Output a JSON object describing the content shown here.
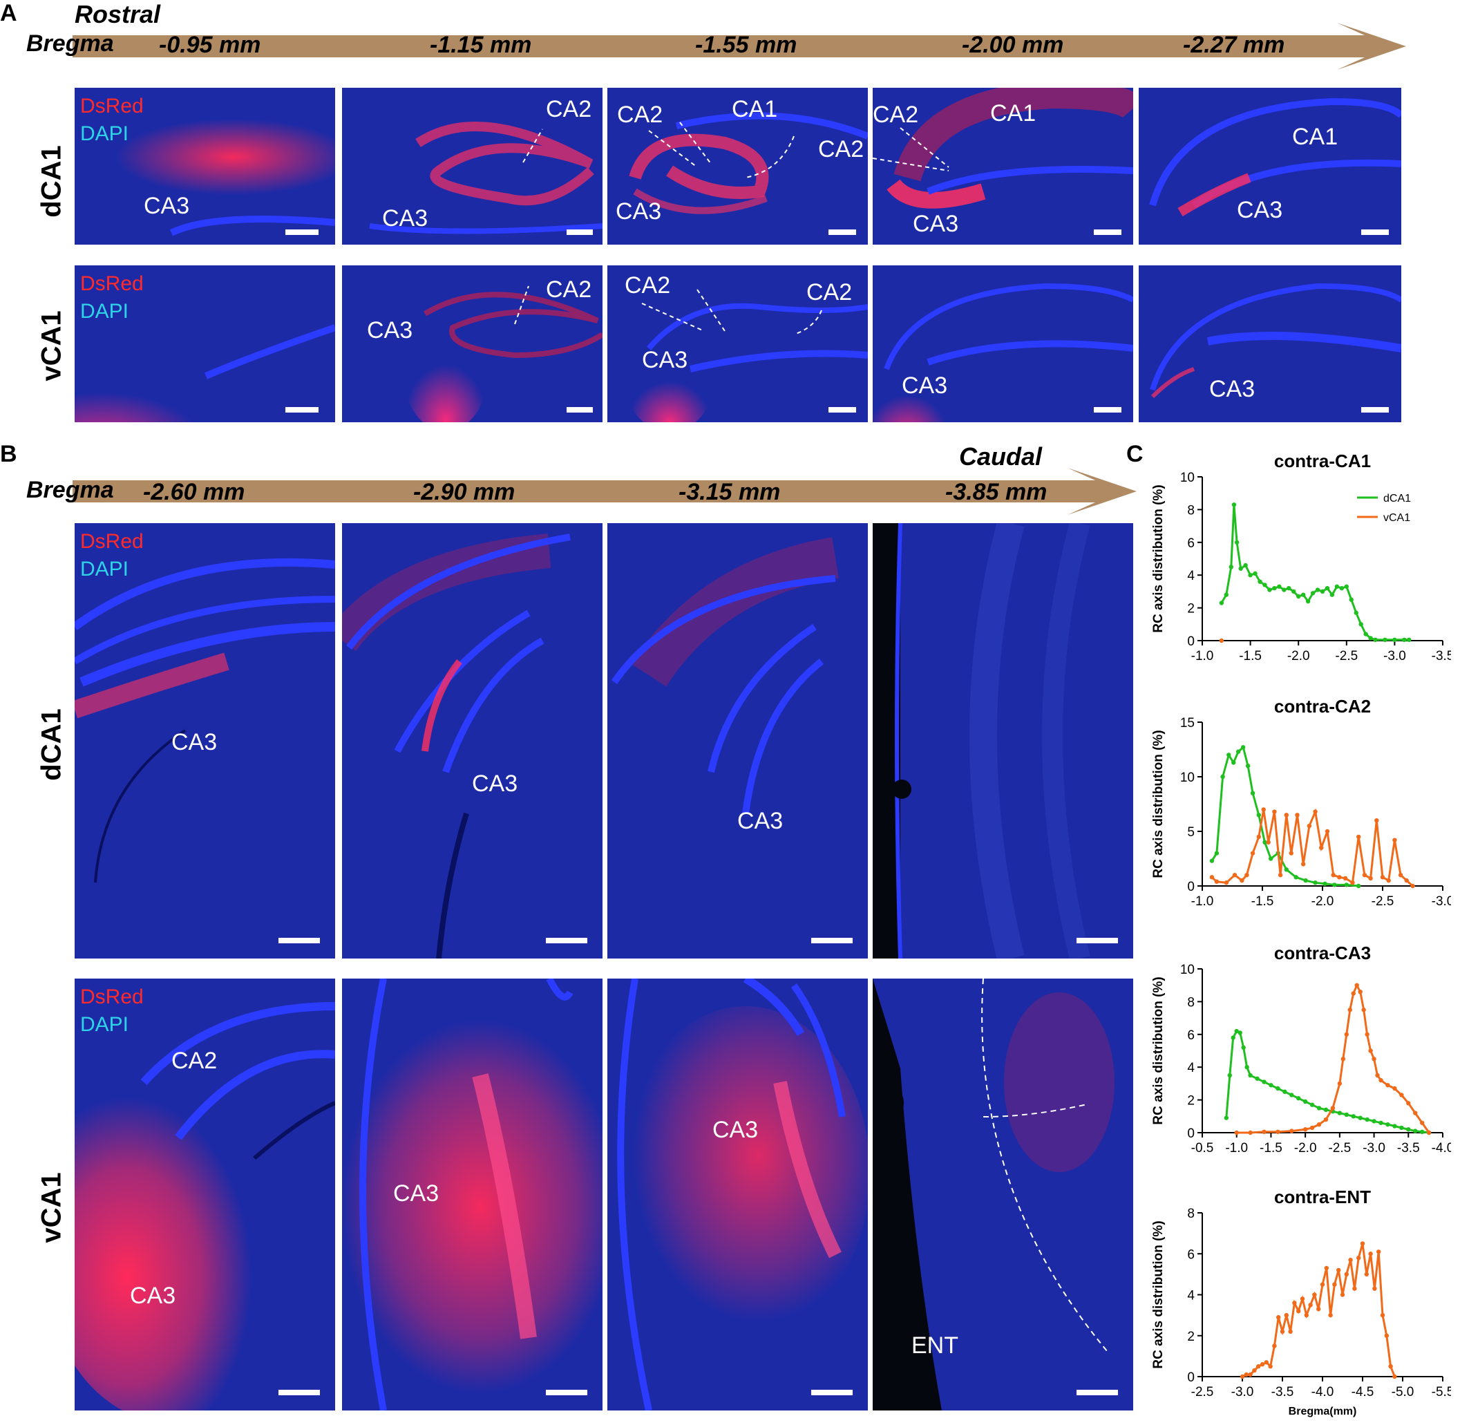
{
  "panel_labels": {
    "a": "A",
    "b": "B",
    "c": "C"
  },
  "direction": {
    "rostral": "Rostral",
    "caudal": "Caudal",
    "bregma": "Bregma"
  },
  "row_labels": {
    "dca1": "dCA1",
    "vca1": "vCA1"
  },
  "stain_legend": {
    "dsred": "DsRed",
    "dapi": "DAPI"
  },
  "bregma_a": [
    "-0.95 mm",
    "-1.15 mm",
    "-1.55 mm",
    "-2.00 mm",
    "-2.27 mm"
  ],
  "bregma_b": [
    "-2.60 mm",
    "-2.90 mm",
    "-3.15 mm",
    "-3.85 mm"
  ],
  "region_labels": {
    "ca1": "CA1",
    "ca2": "CA2",
    "ca3": "CA3",
    "ent": "ENT"
  },
  "colors": {
    "arrow": "#b08a62",
    "tissue": "#1d2aa6",
    "dsred": "#ff2a5a",
    "dapi": "#2fd3e8",
    "dca1": "#1fbf1f",
    "vca1": "#f06a1a"
  },
  "chart_data": [
    {
      "type": "line",
      "title": "contra-CA1",
      "ylabel": "RC axis distribution (%)",
      "xlabel": "",
      "xlim": [
        -1.0,
        -3.5
      ],
      "xticks": [
        -1.0,
        -1.5,
        -2.0,
        -2.5,
        -3.0,
        -3.5
      ],
      "ylim": [
        0,
        10
      ],
      "yticks": [
        0,
        2,
        4,
        6,
        8,
        10
      ],
      "legend": "top-right",
      "series": [
        {
          "name": "dCA1",
          "x": [
            -1.2,
            -1.25,
            -1.3,
            -1.33,
            -1.36,
            -1.4,
            -1.45,
            -1.5,
            -1.55,
            -1.6,
            -1.65,
            -1.7,
            -1.75,
            -1.8,
            -1.85,
            -1.9,
            -1.95,
            -2.0,
            -2.05,
            -2.1,
            -2.15,
            -2.2,
            -2.25,
            -2.3,
            -2.35,
            -2.4,
            -2.45,
            -2.5,
            -2.55,
            -2.6,
            -2.65,
            -2.7,
            -2.75,
            -2.8,
            -2.9,
            -3.0,
            -3.1,
            -3.15
          ],
          "y": [
            2.3,
            2.8,
            4.5,
            8.3,
            6.0,
            4.4,
            4.6,
            4.0,
            4.1,
            3.6,
            3.4,
            3.1,
            3.2,
            3.3,
            3.1,
            3.2,
            3.0,
            2.7,
            2.8,
            2.4,
            2.9,
            3.1,
            3.0,
            3.2,
            2.8,
            3.3,
            3.2,
            3.3,
            2.5,
            1.7,
            1.0,
            0.4,
            0.15,
            0.05,
            0.05,
            0.05,
            0.05,
            0.05
          ]
        },
        {
          "name": "vCA1",
          "x": [
            -1.2
          ],
          "y": [
            0.0
          ]
        }
      ]
    },
    {
      "type": "line",
      "title": "contra-CA2",
      "ylabel": "RC axis distribution (%)",
      "xlabel": "",
      "xlim": [
        -1.0,
        -3.0
      ],
      "xticks": [
        -1.0,
        -1.5,
        -2.0,
        -2.5,
        -3.0
      ],
      "ylim": [
        0,
        15
      ],
      "yticks": [
        0,
        5,
        10,
        15
      ],
      "legend": "",
      "series": [
        {
          "name": "dCA1",
          "x": [
            -1.08,
            -1.12,
            -1.17,
            -1.22,
            -1.26,
            -1.3,
            -1.34,
            -1.38,
            -1.42,
            -1.47,
            -1.52,
            -1.57,
            -1.63,
            -1.7,
            -1.78,
            -1.86,
            -1.94,
            -2.02,
            -2.1,
            -2.2,
            -2.3
          ],
          "y": [
            2.3,
            3.0,
            10.0,
            12.0,
            11.3,
            12.3,
            12.7,
            11.0,
            8.5,
            6.5,
            4.0,
            2.5,
            3.0,
            1.5,
            0.8,
            0.5,
            0.3,
            0.2,
            0.1,
            0.1,
            0.0
          ]
        },
        {
          "name": "vCA1",
          "x": [
            -1.08,
            -1.12,
            -1.2,
            -1.27,
            -1.33,
            -1.37,
            -1.42,
            -1.47,
            -1.51,
            -1.55,
            -1.6,
            -1.65,
            -1.7,
            -1.74,
            -1.79,
            -1.84,
            -1.89,
            -1.94,
            -1.99,
            -2.04,
            -2.09,
            -2.14,
            -2.19,
            -2.25,
            -2.3,
            -2.35,
            -2.4,
            -2.45,
            -2.5,
            -2.55,
            -2.6,
            -2.65,
            -2.7,
            -2.75
          ],
          "y": [
            0.8,
            0.4,
            0.3,
            1.0,
            0.5,
            1.0,
            3.0,
            4.5,
            7.0,
            4.0,
            6.8,
            1.0,
            6.5,
            3.0,
            6.5,
            2.0,
            5.5,
            6.8,
            3.5,
            5.0,
            1.0,
            0.8,
            0.7,
            0.3,
            4.5,
            1.0,
            0.7,
            6.0,
            0.8,
            0.5,
            4.2,
            1.0,
            0.5,
            0.0
          ]
        }
      ]
    },
    {
      "type": "line",
      "title": "contra-CA3",
      "ylabel": "RC axis distribution (%)",
      "xlabel": "",
      "xlim": [
        -0.5,
        -4.0
      ],
      "xticks": [
        -0.5,
        -1.0,
        -1.5,
        -2.0,
        -2.5,
        -3.0,
        -3.5,
        -4.0
      ],
      "ylim": [
        0,
        10
      ],
      "yticks": [
        0,
        2,
        4,
        6,
        8,
        10
      ],
      "legend": "",
      "series": [
        {
          "name": "dCA1",
          "x": [
            -0.85,
            -0.9,
            -0.95,
            -1.0,
            -1.05,
            -1.1,
            -1.15,
            -1.2,
            -1.3,
            -1.4,
            -1.5,
            -1.6,
            -1.7,
            -1.8,
            -1.9,
            -2.0,
            -2.1,
            -2.2,
            -2.3,
            -2.4,
            -2.5,
            -2.6,
            -2.7,
            -2.8,
            -2.9,
            -3.0,
            -3.1,
            -3.2,
            -3.3,
            -3.4,
            -3.5,
            -3.6,
            -3.7,
            -3.8
          ],
          "y": [
            0.9,
            3.5,
            5.8,
            6.2,
            6.1,
            5.2,
            4.0,
            3.5,
            3.3,
            3.1,
            2.9,
            2.7,
            2.5,
            2.3,
            2.1,
            1.9,
            1.7,
            1.5,
            1.4,
            1.3,
            1.2,
            1.1,
            1.0,
            0.9,
            0.8,
            0.7,
            0.6,
            0.5,
            0.4,
            0.3,
            0.2,
            0.1,
            0.05,
            0.0
          ]
        },
        {
          "name": "vCA1",
          "x": [
            -1.0,
            -1.2,
            -1.4,
            -1.6,
            -1.8,
            -2.0,
            -2.1,
            -2.2,
            -2.3,
            -2.4,
            -2.5,
            -2.55,
            -2.6,
            -2.65,
            -2.7,
            -2.75,
            -2.8,
            -2.85,
            -2.9,
            -2.95,
            -3.0,
            -3.05,
            -3.1,
            -3.2,
            -3.3,
            -3.4,
            -3.5,
            -3.6,
            -3.7,
            -3.8
          ],
          "y": [
            0.0,
            0.0,
            0.05,
            0.05,
            0.1,
            0.2,
            0.3,
            0.5,
            0.8,
            1.5,
            3.0,
            4.5,
            6.0,
            7.5,
            8.5,
            9.0,
            8.6,
            7.5,
            6.0,
            5.0,
            4.5,
            3.5,
            3.2,
            2.9,
            2.7,
            2.3,
            1.8,
            1.2,
            0.6,
            0.0
          ]
        }
      ]
    },
    {
      "type": "line",
      "title": "contra-ENT",
      "ylabel": "RC axis distribution (%)",
      "xlabel": "Bregma(mm)",
      "xlim": [
        -2.5,
        -5.5
      ],
      "xticks": [
        -2.5,
        -3.0,
        -3.5,
        -4.0,
        -4.5,
        -5.0,
        -5.5
      ],
      "ylim": [
        0,
        8
      ],
      "yticks": [
        0,
        2,
        4,
        6,
        8
      ],
      "legend": "",
      "series": [
        {
          "name": "vCA1",
          "x": [
            -3.0,
            -3.05,
            -3.1,
            -3.15,
            -3.2,
            -3.25,
            -3.3,
            -3.35,
            -3.4,
            -3.45,
            -3.5,
            -3.55,
            -3.6,
            -3.65,
            -3.7,
            -3.75,
            -3.8,
            -3.85,
            -3.9,
            -3.95,
            -4.0,
            -4.05,
            -4.1,
            -4.15,
            -4.2,
            -4.25,
            -4.3,
            -4.35,
            -4.4,
            -4.45,
            -4.5,
            -4.55,
            -4.6,
            -4.65,
            -4.7,
            -4.75,
            -4.8,
            -4.85,
            -4.9
          ],
          "y": [
            0.0,
            0.1,
            0.1,
            0.3,
            0.5,
            0.6,
            0.7,
            0.5,
            1.5,
            2.9,
            2.2,
            3.0,
            2.2,
            3.6,
            3.2,
            3.8,
            3.0,
            3.5,
            4.0,
            3.3,
            4.5,
            5.3,
            3.0,
            4.5,
            5.2,
            4.0,
            5.0,
            5.7,
            4.3,
            5.8,
            6.5,
            5.0,
            6.0,
            4.3,
            6.1,
            3.0,
            2.0,
            0.5,
            0.0
          ]
        }
      ]
    }
  ]
}
